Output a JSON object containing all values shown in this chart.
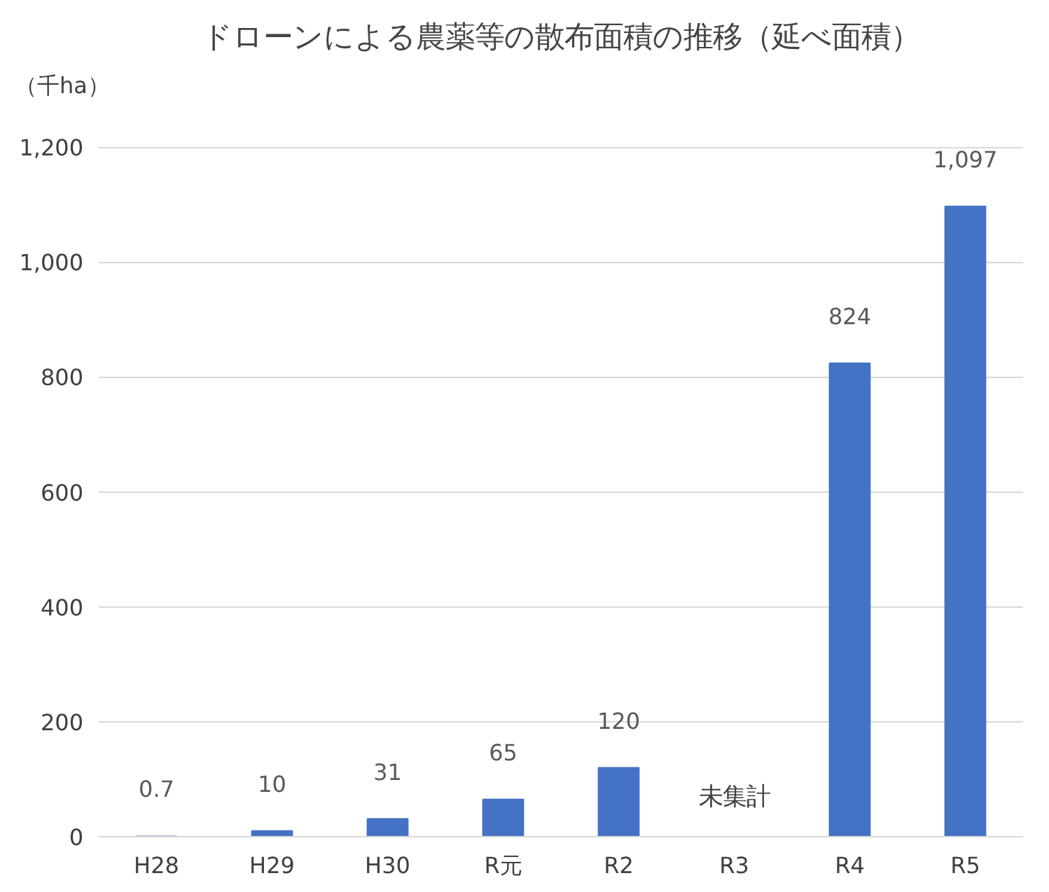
{
  "chart_data": {
    "type": "bar",
    "title": "ドローンによる農薬等の散布面積の推移（延べ面積）",
    "ylabel": "（千ha）",
    "categories": [
      "H28",
      "H29",
      "H30",
      "R元",
      "R2",
      "R3",
      "R4",
      "R5"
    ],
    "values": [
      0.7,
      10,
      31,
      65,
      120,
      null,
      824,
      1097
    ],
    "value_labels": [
      "0.7",
      "10",
      "31",
      "65",
      "120",
      null,
      "824",
      "1,097"
    ],
    "color": "#4472c4",
    "ylim": [
      0,
      1200
    ],
    "yticks": [
      0,
      200,
      400,
      600,
      800,
      {
        "value": 1000,
        "label": "1,000"
      },
      {
        "value": 1200,
        "label": "1,200"
      }
    ],
    "grid": "y",
    "annotations": [
      "未集計"
    ]
  }
}
